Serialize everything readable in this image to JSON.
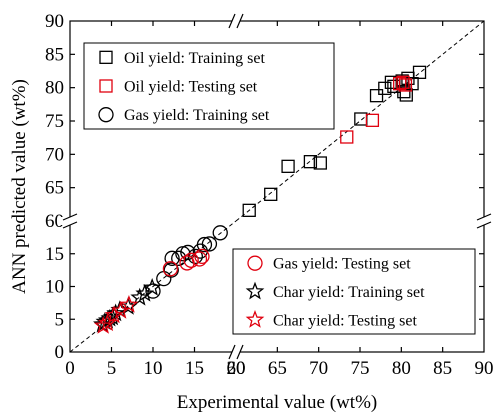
{
  "chart_data": {
    "type": "scatter",
    "xlabel": "Experimental value (wt%)",
    "ylabel": "ANN predicted value (wt%)",
    "xlim": [
      0,
      90
    ],
    "ylim": [
      0,
      90
    ],
    "x_axis_break": [
      20,
      60
    ],
    "y_axis_break": [
      20,
      60
    ],
    "x_ticks": [
      "0",
      "5",
      "10",
      "15",
      "20",
      "60",
      "65",
      "70",
      "75",
      "80",
      "85",
      "90"
    ],
    "y_ticks": [
      "0",
      "5",
      "10",
      "15",
      "60",
      "65",
      "70",
      "75",
      "80",
      "85",
      "90"
    ],
    "reference_line": "y = x (dashed)",
    "colors": {
      "training": "#000000",
      "testing": "#e0000f"
    },
    "legends": [
      {
        "position": "top-left",
        "entries": [
          {
            "label": "Oil yield: Training set",
            "marker": "square",
            "color": "#000000"
          },
          {
            "label": "Oil yield: Testing set",
            "marker": "square",
            "color": "#e0000f"
          },
          {
            "label": "Gas yield: Training set",
            "marker": "circle",
            "color": "#000000"
          }
        ]
      },
      {
        "position": "bottom-right",
        "entries": [
          {
            "label": "Gas yield: Testing set",
            "marker": "circle",
            "color": "#e0000f"
          },
          {
            "label": "Char yield: Training set",
            "marker": "star",
            "color": "#000000"
          },
          {
            "label": "Char yield: Testing set",
            "marker": "star",
            "color": "#e0000f"
          }
        ]
      }
    ],
    "series": [
      {
        "name": "Oil yield: Training set",
        "marker": "square",
        "color": "#000000",
        "points": [
          [
            61.6,
            61.6
          ],
          [
            64.2,
            64.0
          ],
          [
            66.3,
            68.2
          ],
          [
            69.0,
            68.9
          ],
          [
            70.2,
            68.7
          ],
          [
            75.1,
            75.3
          ],
          [
            77.0,
            78.8
          ],
          [
            78.0,
            79.9
          ],
          [
            78.8,
            80.8
          ],
          [
            80.1,
            81.0
          ],
          [
            80.8,
            81.4
          ],
          [
            80.3,
            79.4
          ],
          [
            80.6,
            78.9
          ],
          [
            81.3,
            80.6
          ],
          [
            82.2,
            82.3
          ],
          [
            79.1,
            80.2
          ]
        ]
      },
      {
        "name": "Oil yield: Testing set",
        "marker": "square",
        "color": "#e0000f",
        "points": [
          [
            73.4,
            72.6
          ],
          [
            76.5,
            75.1
          ],
          [
            79.8,
            80.6
          ],
          [
            80.2,
            80.8
          ],
          [
            80.5,
            80.4
          ]
        ]
      },
      {
        "name": "Gas yield: Training set",
        "marker": "circle",
        "color": "#000000",
        "points": [
          [
            10.0,
            9.3
          ],
          [
            11.3,
            11.2
          ],
          [
            12.2,
            12.5
          ],
          [
            12.3,
            14.3
          ],
          [
            13.1,
            14.3
          ],
          [
            13.6,
            15.0
          ],
          [
            14.2,
            15.2
          ],
          [
            15.1,
            14.6
          ],
          [
            15.7,
            15.4
          ],
          [
            16.2,
            16.4
          ],
          [
            16.8,
            16.5
          ],
          [
            18.1,
            18.2
          ]
        ]
      },
      {
        "name": "Gas yield: Testing set",
        "marker": "circle",
        "color": "#e0000f",
        "points": [
          [
            12.1,
            12.7
          ],
          [
            14.1,
            13.6
          ],
          [
            14.6,
            14.0
          ],
          [
            15.6,
            14.2
          ],
          [
            15.9,
            14.6
          ]
        ]
      },
      {
        "name": "Char yield: Training set",
        "marker": "star",
        "color": "#000000",
        "points": [
          [
            3.9,
            4.2
          ],
          [
            4.2,
            4.6
          ],
          [
            4.5,
            4.8
          ],
          [
            4.8,
            5.1
          ],
          [
            5.1,
            5.3
          ],
          [
            5.5,
            5.9
          ],
          [
            6.0,
            6.4
          ],
          [
            7.0,
            6.9
          ],
          [
            8.4,
            8.3
          ],
          [
            9.0,
            8.9
          ],
          [
            9.9,
            9.8
          ]
        ]
      },
      {
        "name": "Char yield: Testing set",
        "marker": "star",
        "color": "#e0000f",
        "points": [
          [
            4.0,
            4.0
          ],
          [
            4.5,
            4.4
          ],
          [
            5.3,
            5.6
          ],
          [
            6.1,
            6.3
          ],
          [
            7.1,
            7.2
          ]
        ]
      }
    ]
  }
}
